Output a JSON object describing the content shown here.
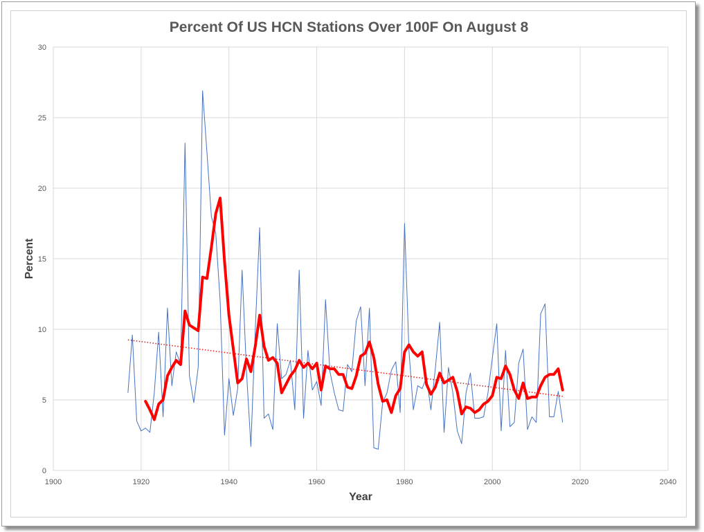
{
  "chart_data": {
    "type": "line",
    "title": "Percent Of US HCN Stations Over 100F On August 8",
    "xlabel": "Year",
    "ylabel": "Percent",
    "xlim": [
      1900,
      2040
    ],
    "ylim": [
      0,
      30
    ],
    "x_ticks": [
      "1900",
      "1920",
      "1940",
      "1960",
      "1980",
      "2000",
      "2020",
      "2040"
    ],
    "y_ticks": [
      "0",
      "5",
      "10",
      "15",
      "20",
      "25",
      "30"
    ],
    "grid": true,
    "legend": "none",
    "colors": {
      "annual": "#4472c4",
      "moving_average": "#ff0000",
      "trend": "#e02020",
      "grid": "#d9d9d9"
    },
    "series": [
      {
        "style": "thin-line",
        "x": [
          1917,
          1918,
          1919,
          1920,
          1921,
          1922,
          1923,
          1924,
          1925,
          1926,
          1927,
          1928,
          1929,
          1930,
          1931,
          1932,
          1933,
          1934,
          1935,
          1936,
          1937,
          1938,
          1939,
          1940,
          1941,
          1942,
          1943,
          1944,
          1945,
          1946,
          1947,
          1948,
          1949,
          1950,
          1951,
          1952,
          1953,
          1954,
          1955,
          1956,
          1957,
          1958,
          1959,
          1960,
          1961,
          1962,
          1963,
          1964,
          1965,
          1966,
          1967,
          1968,
          1969,
          1970,
          1971,
          1972,
          1973,
          1974,
          1975,
          1976,
          1977,
          1978,
          1979,
          1980,
          1981,
          1982,
          1983,
          1984,
          1985,
          1986,
          1987,
          1988,
          1989,
          1990,
          1991,
          1992,
          1993,
          1994,
          1995,
          1996,
          1997,
          1998,
          1999,
          2000,
          2001,
          2002,
          2003,
          2004,
          2005,
          2006,
          2007,
          2008,
          2009,
          2010,
          2011,
          2012,
          2013,
          2014,
          2015,
          2016
        ],
        "y": [
          5.5,
          9.6,
          3.5,
          2.8,
          3.0,
          2.7,
          5.5,
          9.8,
          3.8,
          11.5,
          6.0,
          8.4,
          7.5,
          23.2,
          6.7,
          4.8,
          7.3,
          26.9,
          22.5,
          18.0,
          16.8,
          12.0,
          2.5,
          6.5,
          3.9,
          5.8,
          14.2,
          7.0,
          1.7,
          10.0,
          17.2,
          3.7,
          4.0,
          2.9,
          10.4,
          6.5,
          6.8,
          7.8,
          4.3,
          14.2,
          3.7,
          8.5,
          5.7,
          6.3,
          4.6,
          12.1,
          7.0,
          5.5,
          4.3,
          4.2,
          7.5,
          7.0,
          10.6,
          11.6,
          6.0,
          11.5,
          1.6,
          1.5,
          4.8,
          5.5,
          7.1,
          7.7,
          4.1,
          17.5,
          8.5,
          4.3,
          6.0,
          5.8,
          6.6,
          4.3,
          7.2,
          10.5,
          2.7,
          7.3,
          5.5,
          2.8,
          1.9,
          5.5,
          6.9,
          3.7,
          3.7,
          3.8,
          5.5,
          8.0,
          10.4,
          2.8,
          8.5,
          3.1,
          3.4,
          7.6,
          8.6,
          2.9,
          3.8,
          3.4,
          11.1,
          11.8,
          3.8,
          3.8,
          5.6,
          3.4
        ]
      },
      {
        "style": "thick-line",
        "x": [
          1921,
          1922,
          1923,
          1924,
          1925,
          1926,
          1927,
          1928,
          1929,
          1930,
          1931,
          1932,
          1933,
          1934,
          1935,
          1936,
          1937,
          1938,
          1939,
          1940,
          1941,
          1942,
          1943,
          1944,
          1945,
          1946,
          1947,
          1948,
          1949,
          1950,
          1951,
          1952,
          1953,
          1954,
          1955,
          1956,
          1957,
          1958,
          1959,
          1960,
          1961,
          1962,
          1963,
          1964,
          1965,
          1966,
          1967,
          1968,
          1969,
          1970,
          1971,
          1972,
          1973,
          1974,
          1975,
          1976,
          1977,
          1978,
          1979,
          1980,
          1981,
          1982,
          1983,
          1984,
          1985,
          1986,
          1987,
          1988,
          1989,
          1990,
          1991,
          1992,
          1993,
          1994,
          1995,
          1996,
          1997,
          1998,
          1999,
          2000,
          2001,
          2002,
          2003,
          2004,
          2005,
          2006,
          2007,
          2008,
          2009,
          2010,
          2011,
          2012,
          2013,
          2014,
          2015,
          2016
        ],
        "y": [
          4.9,
          4.3,
          3.6,
          4.7,
          5.0,
          6.7,
          7.3,
          7.8,
          7.5,
          11.3,
          10.3,
          10.1,
          9.9,
          13.7,
          13.6,
          15.8,
          18.2,
          19.3,
          14.8,
          11.0,
          8.6,
          6.2,
          6.5,
          7.9,
          7.0,
          8.8,
          11.0,
          8.8,
          7.8,
          8.0,
          7.6,
          5.5,
          6.1,
          6.7,
          7.1,
          7.8,
          7.3,
          7.6,
          7.2,
          7.6,
          5.7,
          7.4,
          7.2,
          7.2,
          6.8,
          6.8,
          5.9,
          5.8,
          6.7,
          8.1,
          8.3,
          9.1,
          8.0,
          6.1,
          4.9,
          5.0,
          4.1,
          5.3,
          5.8,
          8.4,
          8.9,
          8.4,
          8.1,
          8.4,
          6.1,
          5.4,
          5.9,
          6.9,
          6.2,
          6.4,
          6.6,
          5.6,
          4.0,
          4.5,
          4.4,
          4.1,
          4.3,
          4.7,
          4.9,
          5.3,
          6.6,
          6.5,
          7.4,
          6.8,
          5.7,
          5.1,
          6.2,
          5.1,
          5.2,
          5.2,
          6.0,
          6.6,
          6.8,
          6.8,
          7.2,
          5.7
        ]
      },
      {
        "style": "dotted-trendline",
        "x": [
          1917,
          2016
        ],
        "y": [
          9.25,
          5.25
        ]
      }
    ]
  }
}
